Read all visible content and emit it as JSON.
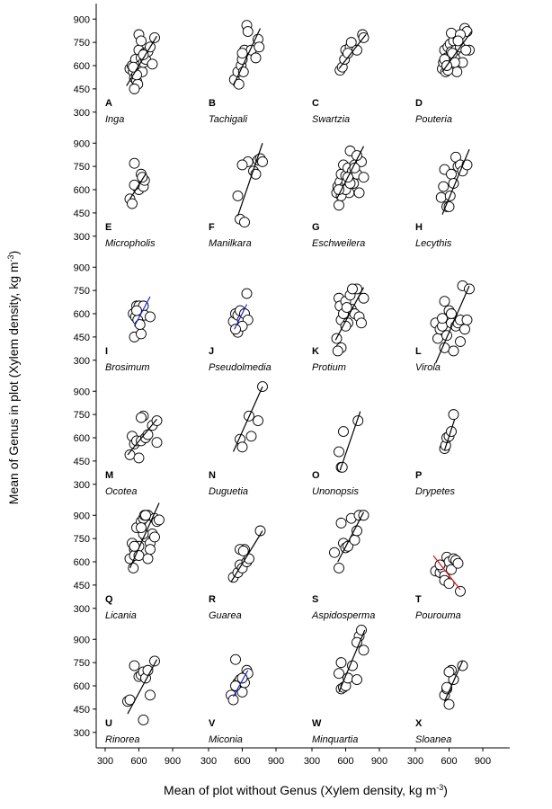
{
  "axis_labels": {
    "y": {
      "text": "Mean of Genus in plot (Xylem density, kg m",
      "sup": "-3",
      "end": ")"
    },
    "x": {
      "text": "Mean of plot without Genus (Xylem density, kg m",
      "sup": "-3",
      "end": ")"
    }
  },
  "chart_data": [
    {
      "type": "scatter",
      "label": "A",
      "title": "Inga",
      "xlim": [
        220,
        1140
      ],
      "ylim": [
        200,
        1000
      ],
      "yticks": [
        300,
        450,
        600,
        750,
        900
      ],
      "x": [
        520,
        540,
        550,
        560,
        570,
        580,
        590,
        600,
        610,
        620,
        630,
        640,
        650,
        660,
        680,
        700,
        720,
        740,
        560,
        600,
        620,
        580,
        550,
        640
      ],
      "y": [
        580,
        600,
        560,
        520,
        640,
        500,
        480,
        700,
        600,
        650,
        560,
        620,
        680,
        640,
        690,
        720,
        610,
        780,
        450,
        800,
        760,
        540,
        590,
        670
      ],
      "fit": {
        "x": [
          490,
          760
        ],
        "y": [
          470,
          790
        ],
        "color": "#000000"
      }
    },
    {
      "type": "scatter",
      "label": "B",
      "title": "Tachigali",
      "xlim": [
        220,
        1140
      ],
      "ylim": [
        200,
        1000
      ],
      "x": [
        530,
        560,
        570,
        590,
        600,
        620,
        640,
        650,
        680,
        720,
        740,
        750,
        600,
        610
      ],
      "y": [
        510,
        560,
        480,
        600,
        640,
        700,
        860,
        820,
        700,
        650,
        770,
        720,
        680,
        560
      ],
      "fit": {
        "x": [
          520,
          760
        ],
        "y": [
          470,
          840
        ],
        "color": "#000000"
      }
    },
    {
      "type": "scatter",
      "label": "C",
      "title": "Swartzia",
      "xlim": [
        220,
        1140
      ],
      "ylim": [
        200,
        1000
      ],
      "x": [
        550,
        570,
        590,
        600,
        640,
        650,
        700,
        750,
        760,
        620
      ],
      "y": [
        570,
        590,
        640,
        700,
        720,
        750,
        700,
        800,
        780,
        680
      ],
      "fit": {
        "x": [
          540,
          780
        ],
        "y": [
          580,
          800
        ],
        "color": "#000000"
      }
    },
    {
      "type": "scatter",
      "label": "D",
      "title": "Pouteria",
      "xlim": [
        220,
        1140
      ],
      "ylim": [
        200,
        1000
      ],
      "x": [
        540,
        550,
        560,
        570,
        580,
        590,
        600,
        610,
        620,
        630,
        640,
        650,
        660,
        670,
        680,
        700,
        720,
        740,
        760,
        780,
        560,
        590,
        620,
        650,
        700,
        750,
        580,
        630,
        680
      ],
      "y": [
        580,
        620,
        700,
        560,
        650,
        720,
        600,
        740,
        690,
        600,
        760,
        650,
        700,
        560,
        780,
        720,
        620,
        840,
        820,
        700,
        640,
        570,
        810,
        620,
        800,
        700,
        600,
        680,
        760
      ],
      "fit": {
        "x": [
          540,
          800
        ],
        "y": [
          560,
          820
        ],
        "color": "#000000"
      }
    },
    {
      "type": "scatter",
      "label": "E",
      "title": "Micropholis",
      "xlim": [
        220,
        1140
      ],
      "ylim": [
        200,
        1000
      ],
      "yticks": [
        300,
        450,
        600,
        750,
        900
      ],
      "x": [
        520,
        540,
        560,
        580,
        600,
        620,
        640,
        650,
        560,
        630
      ],
      "y": [
        540,
        510,
        770,
        620,
        600,
        700,
        620,
        660,
        630,
        680
      ],
      "fit": {
        "x": [
          520,
          660
        ],
        "y": [
          540,
          700
        ],
        "color": "#000000"
      }
    },
    {
      "type": "scatter",
      "label": "F",
      "title": "Manilkara",
      "xlim": [
        220,
        1140
      ],
      "ylim": [
        200,
        1000
      ],
      "x": [
        560,
        580,
        620,
        650,
        700,
        740,
        760,
        780,
        600,
        720
      ],
      "y": [
        560,
        410,
        390,
        780,
        720,
        790,
        800,
        780,
        760,
        700
      ],
      "fit": {
        "x": [
          560,
          780
        ],
        "y": [
          430,
          900
        ],
        "color": "#000000"
      }
    },
    {
      "type": "scatter",
      "label": "G",
      "title": "Eschweilera",
      "xlim": [
        220,
        1140
      ],
      "ylim": [
        200,
        1000
      ],
      "x": [
        520,
        530,
        540,
        550,
        560,
        570,
        580,
        590,
        600,
        610,
        620,
        630,
        640,
        650,
        660,
        670,
        680,
        700,
        720,
        740,
        760,
        560,
        600,
        640,
        680,
        540,
        620,
        700
      ],
      "y": [
        580,
        620,
        500,
        650,
        700,
        600,
        760,
        620,
        690,
        650,
        740,
        580,
        850,
        700,
        720,
        640,
        760,
        700,
        580,
        780,
        680,
        560,
        600,
        640,
        740,
        600,
        680,
        820
      ],
      "fit": {
        "x": [
          520,
          760
        ],
        "y": [
          540,
          880
        ],
        "color": "#000000"
      }
    },
    {
      "type": "scatter",
      "label": "H",
      "title": "Lecythis",
      "xlim": [
        220,
        1140
      ],
      "ylim": [
        200,
        1000
      ],
      "x": [
        530,
        560,
        580,
        600,
        620,
        640,
        660,
        680,
        700,
        720,
        760,
        550,
        610
      ],
      "y": [
        550,
        730,
        490,
        490,
        700,
        640,
        810,
        750,
        760,
        720,
        760,
        620,
        560
      ],
      "fit": {
        "x": [
          540,
          780
        ],
        "y": [
          440,
          860
        ],
        "color": "#000000"
      }
    },
    {
      "type": "scatter",
      "label": "I",
      "title": "Brosimum",
      "xlim": [
        220,
        1140
      ],
      "ylim": [
        200,
        1000
      ],
      "yticks": [
        300,
        450,
        600,
        750,
        900
      ],
      "x": [
        550,
        570,
        580,
        600,
        620,
        640,
        650,
        560,
        590,
        700,
        620,
        610,
        580
      ],
      "y": [
        600,
        580,
        650,
        650,
        620,
        650,
        590,
        450,
        560,
        580,
        470,
        530,
        620
      ],
      "fit": {
        "x": [
          560,
          700
        ],
        "y": [
          520,
          710
        ],
        "color": "#1f1fd0"
      }
    },
    {
      "type": "scatter",
      "label": "J",
      "title": "Pseudolmedia",
      "xlim": [
        220,
        1140
      ],
      "ylim": [
        200,
        1000
      ],
      "x": [
        520,
        540,
        560,
        580,
        600,
        620,
        640,
        650,
        560,
        600,
        540
      ],
      "y": [
        550,
        600,
        590,
        620,
        560,
        600,
        730,
        560,
        480,
        520,
        500
      ],
      "fit": {
        "x": [
          530,
          640
        ],
        "y": [
          500,
          660
        ],
        "color": "#1f1fd0"
      }
    },
    {
      "type": "scatter",
      "label": "K",
      "title": "Protium",
      "xlim": [
        220,
        1140
      ],
      "ylim": [
        200,
        1000
      ],
      "x": [
        520,
        540,
        550,
        560,
        580,
        600,
        620,
        640,
        650,
        680,
        700,
        720,
        760,
        560,
        600,
        660,
        740,
        530,
        610
      ],
      "y": [
        440,
        700,
        650,
        560,
        600,
        680,
        540,
        720,
        630,
        600,
        760,
        580,
        700,
        380,
        520,
        760,
        540,
        360,
        640
      ],
      "fit": {
        "x": [
          510,
          760
        ],
        "y": [
          430,
          770
        ],
        "color": "#000000"
      }
    },
    {
      "type": "scatter",
      "label": "L",
      "title": "Virola",
      "xlim": [
        220,
        1140
      ],
      "ylim": [
        200,
        1000
      ],
      "x": [
        480,
        500,
        520,
        540,
        560,
        580,
        600,
        620,
        640,
        660,
        680,
        700,
        720,
        740,
        760,
        780,
        600,
        560,
        700,
        540,
        620
      ],
      "y": [
        540,
        440,
        500,
        520,
        380,
        460,
        580,
        540,
        360,
        520,
        540,
        560,
        780,
        500,
        560,
        760,
        620,
        680,
        420,
        570,
        600
      ],
      "fit": {
        "x": [
          480,
          780
        ],
        "y": [
          280,
          780
        ],
        "color": "#000000"
      }
    },
    {
      "type": "scatter",
      "label": "M",
      "title": "Ocotea",
      "xlim": [
        220,
        1140
      ],
      "ylim": [
        200,
        1000
      ],
      "yticks": [
        300,
        450,
        600,
        750,
        900
      ],
      "x": [
        520,
        540,
        560,
        580,
        600,
        620,
        640,
        660,
        680,
        720,
        760,
        760,
        620
      ],
      "y": [
        490,
        610,
        560,
        580,
        470,
        580,
        740,
        600,
        620,
        680,
        710,
        570,
        730
      ],
      "fit": {
        "x": [
          500,
          760
        ],
        "y": [
          490,
          720
        ],
        "color": "#000000"
      }
    },
    {
      "type": "scatter",
      "label": "N",
      "title": "Duguetia",
      "xlim": [
        220,
        1140
      ],
      "ylim": [
        200,
        1000
      ],
      "x": [
        580,
        600,
        660,
        680,
        740,
        780
      ],
      "y": [
        590,
        540,
        740,
        610,
        710,
        930
      ],
      "fit": {
        "x": [
          520,
          780
        ],
        "y": [
          510,
          930
        ],
        "color": "#000000"
      }
    },
    {
      "type": "scatter",
      "label": "O",
      "title": "Unonopsis",
      "xlim": [
        220,
        1140
      ],
      "ylim": [
        200,
        1000
      ],
      "x": [
        540,
        560,
        570,
        580,
        710
      ],
      "y": [
        510,
        410,
        410,
        640,
        710
      ],
      "fit": {
        "x": [
          550,
          730
        ],
        "y": [
          390,
          770
        ],
        "color": "#000000"
      }
    },
    {
      "type": "scatter",
      "label": "P",
      "title": "Drypetes",
      "xlim": [
        220,
        1140
      ],
      "ylim": [
        200,
        1000
      ],
      "x": [
        560,
        570,
        580,
        600,
        620,
        640
      ],
      "y": [
        530,
        550,
        600,
        610,
        640,
        750
      ],
      "fit": {
        "x": [
          560,
          650
        ],
        "y": [
          520,
          720
        ],
        "color": "#000000"
      }
    },
    {
      "type": "scatter",
      "label": "Q",
      "title": "Licania",
      "xlim": [
        220,
        1140
      ],
      "ylim": [
        200,
        1000
      ],
      "yticks": [
        300,
        450,
        600,
        750,
        900
      ],
      "x": [
        520,
        540,
        550,
        560,
        580,
        600,
        620,
        640,
        650,
        660,
        680,
        700,
        720,
        740,
        760,
        780,
        560,
        600,
        640,
        700,
        560,
        620,
        680,
        740,
        660
      ],
      "y": [
        620,
        720,
        560,
        680,
        820,
        700,
        860,
        880,
        900,
        760,
        900,
        720,
        780,
        880,
        860,
        870,
        640,
        640,
        780,
        680,
        700,
        820,
        620,
        760,
        900
      ],
      "fit": {
        "x": [
          520,
          780
        ],
        "y": [
          560,
          980
        ],
        "color": "#000000"
      }
    },
    {
      "type": "scatter",
      "label": "R",
      "title": "Guarea",
      "xlim": [
        220,
        1140
      ],
      "ylim": [
        200,
        1000
      ],
      "x": [
        520,
        560,
        580,
        600,
        620,
        640,
        660,
        760,
        580,
        610
      ],
      "y": [
        500,
        530,
        580,
        560,
        680,
        600,
        620,
        800,
        680,
        670
      ],
      "fit": {
        "x": [
          500,
          780
        ],
        "y": [
          470,
          800
        ],
        "color": "#000000"
      }
    },
    {
      "type": "scatter",
      "label": "S",
      "title": "Aspidosperma",
      "xlim": [
        220,
        1140
      ],
      "ylim": [
        200,
        1000
      ],
      "x": [
        500,
        540,
        560,
        580,
        600,
        620,
        650,
        680,
        700,
        720,
        760
      ],
      "y": [
        660,
        560,
        850,
        720,
        690,
        700,
        880,
        740,
        800,
        900,
        900
      ],
      "fit": {
        "x": [
          530,
          760
        ],
        "y": [
          600,
          920
        ],
        "color": "#000000"
      }
    },
    {
      "type": "scatter",
      "label": "T",
      "title": "Pourouma",
      "xlim": [
        220,
        1140
      ],
      "ylim": [
        200,
        1000
      ],
      "x": [
        480,
        520,
        540,
        560,
        580,
        600,
        620,
        640,
        660,
        680,
        700,
        560,
        600,
        520
      ],
      "y": [
        540,
        530,
        560,
        510,
        630,
        600,
        550,
        620,
        610,
        590,
        410,
        480,
        460,
        580
      ],
      "fit": {
        "x": [
          460,
          700
        ],
        "y": [
          640,
          420
        ],
        "color": "#e01010"
      }
    },
    {
      "type": "scatter",
      "label": "U",
      "title": "Rinorea",
      "xlim": [
        220,
        1140
      ],
      "ylim": [
        200,
        1000
      ],
      "yticks": [
        300,
        450,
        600,
        750,
        900
      ],
      "xticks": [
        300,
        600,
        900
      ],
      "x": [
        500,
        520,
        560,
        600,
        620,
        640,
        660,
        680,
        700,
        740,
        640
      ],
      "y": [
        500,
        510,
        730,
        660,
        670,
        690,
        650,
        700,
        540,
        760,
        380
      ],
      "fit": {
        "x": [
          500,
          760
        ],
        "y": [
          420,
          770
        ],
        "color": "#000000"
      }
    },
    {
      "type": "scatter",
      "label": "V",
      "title": "Miconia",
      "xlim": [
        220,
        1140
      ],
      "ylim": [
        200,
        1000
      ],
      "xticks": [
        300,
        600,
        900
      ],
      "x": [
        500,
        520,
        540,
        560,
        580,
        600,
        620,
        640,
        650,
        540,
        600
      ],
      "y": [
        540,
        510,
        770,
        620,
        640,
        560,
        620,
        700,
        680,
        600,
        650
      ],
      "fit": {
        "x": [
          520,
          650
        ],
        "y": [
          530,
          700
        ],
        "color": "#1f1fd0"
      }
    },
    {
      "type": "scatter",
      "label": "W",
      "title": "Minquartia",
      "xlim": [
        220,
        1140
      ],
      "ylim": [
        200,
        1000
      ],
      "xticks": [
        300,
        600,
        900
      ],
      "x": [
        540,
        560,
        580,
        600,
        620,
        660,
        700,
        720,
        740,
        760,
        560,
        700
      ],
      "y": [
        680,
        580,
        590,
        600,
        650,
        730,
        640,
        920,
        960,
        830,
        750,
        880
      ],
      "fit": {
        "x": [
          540,
          770
        ],
        "y": [
          560,
          960
        ],
        "color": "#000000"
      }
    },
    {
      "type": "scatter",
      "label": "X",
      "title": "Sloanea",
      "xlim": [
        220,
        1140
      ],
      "ylim": [
        200,
        1000
      ],
      "xticks": [
        300,
        600,
        900
      ],
      "x": [
        560,
        580,
        600,
        620,
        640,
        720,
        580,
        600
      ],
      "y": [
        540,
        580,
        480,
        700,
        640,
        730,
        590,
        690
      ],
      "fit": {
        "x": [
          560,
          720
        ],
        "y": [
          500,
          760
        ],
        "color": "#000000"
      }
    }
  ]
}
